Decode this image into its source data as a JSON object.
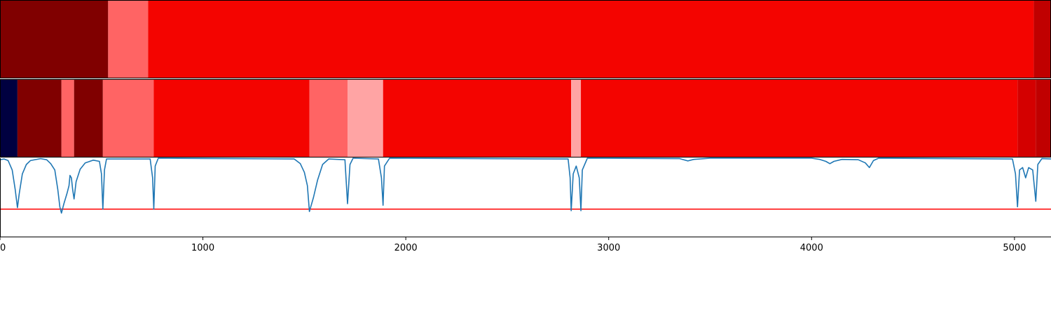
{
  "chart_data": {
    "type": "heatmap",
    "title": "",
    "xlabel": "",
    "ylabel": "",
    "xlim": [
      0,
      5180
    ],
    "x_ticks": [
      "0",
      "1000",
      "2000",
      "3000",
      "4000",
      "5000"
    ],
    "x_tick_values": [
      0,
      1000,
      2000,
      3000,
      4000,
      5000
    ],
    "grid": false,
    "legend": "none",
    "colors": {
      "dark_red": "#800000",
      "red": "#f40400",
      "light_red": "#ff6464",
      "pale_red": "#ffa4a4",
      "mid_red": "#d40000",
      "deep_red": "#c00000",
      "navy": "#000040",
      "line": "#1f77b4",
      "threshold": "#ff0000"
    },
    "bands": [
      {
        "name": "row-1",
        "segments": [
          {
            "start": 0,
            "end": 533,
            "color": "#800000"
          },
          {
            "start": 533,
            "end": 730,
            "color": "#ff6464"
          },
          {
            "start": 730,
            "end": 5095,
            "color": "#f40400"
          },
          {
            "start": 5095,
            "end": 5180,
            "color": "#c00000"
          }
        ]
      },
      {
        "name": "row-2",
        "segments": [
          {
            "start": 0,
            "end": 86,
            "color": "#000040"
          },
          {
            "start": 86,
            "end": 303,
            "color": "#800000"
          },
          {
            "start": 303,
            "end": 365,
            "color": "#ff6464"
          },
          {
            "start": 365,
            "end": 507,
            "color": "#800000"
          },
          {
            "start": 507,
            "end": 758,
            "color": "#ff6464"
          },
          {
            "start": 758,
            "end": 1525,
            "color": "#f40400"
          },
          {
            "start": 1525,
            "end": 1713,
            "color": "#ff6464"
          },
          {
            "start": 1713,
            "end": 1888,
            "color": "#ffa4a4"
          },
          {
            "start": 1888,
            "end": 2815,
            "color": "#f40400"
          },
          {
            "start": 2815,
            "end": 2863,
            "color": "#ffa4a4"
          },
          {
            "start": 2863,
            "end": 5015,
            "color": "#f40400"
          },
          {
            "start": 5015,
            "end": 5105,
            "color": "#d40000"
          },
          {
            "start": 5105,
            "end": 5180,
            "color": "#c00000"
          }
        ]
      }
    ],
    "series": [
      {
        "values": [
          [
            0,
            0.98
          ],
          [
            20,
            0.99
          ],
          [
            40,
            0.97
          ],
          [
            60,
            0.85
          ],
          [
            75,
            0.6
          ],
          [
            86,
            0.37
          ],
          [
            95,
            0.55
          ],
          [
            110,
            0.8
          ],
          [
            130,
            0.92
          ],
          [
            150,
            0.97
          ],
          [
            200,
            0.995
          ],
          [
            230,
            0.98
          ],
          [
            250,
            0.93
          ],
          [
            270,
            0.85
          ],
          [
            285,
            0.6
          ],
          [
            295,
            0.38
          ],
          [
            303,
            0.3
          ],
          [
            315,
            0.42
          ],
          [
            330,
            0.55
          ],
          [
            340,
            0.65
          ],
          [
            345,
            0.78
          ],
          [
            352,
            0.75
          ],
          [
            358,
            0.6
          ],
          [
            365,
            0.48
          ],
          [
            375,
            0.7
          ],
          [
            395,
            0.86
          ],
          [
            420,
            0.94
          ],
          [
            460,
            0.975
          ],
          [
            490,
            0.96
          ],
          [
            500,
            0.8
          ],
          [
            507,
            0.35
          ],
          [
            515,
            0.85
          ],
          [
            525,
            0.99
          ],
          [
            740,
            0.99
          ],
          [
            752,
            0.75
          ],
          [
            758,
            0.35
          ],
          [
            765,
            0.9
          ],
          [
            780,
            1.0
          ],
          [
            1450,
            0.99
          ],
          [
            1480,
            0.93
          ],
          [
            1500,
            0.82
          ],
          [
            1515,
            0.65
          ],
          [
            1525,
            0.32
          ],
          [
            1545,
            0.5
          ],
          [
            1565,
            0.72
          ],
          [
            1590,
            0.92
          ],
          [
            1620,
            0.99
          ],
          [
            1700,
            0.98
          ],
          [
            1713,
            0.42
          ],
          [
            1725,
            0.92
          ],
          [
            1740,
            1.0
          ],
          [
            1865,
            0.99
          ],
          [
            1880,
            0.75
          ],
          [
            1888,
            0.4
          ],
          [
            1895,
            0.9
          ],
          [
            1920,
            1.0
          ],
          [
            2800,
            0.99
          ],
          [
            2810,
            0.75
          ],
          [
            2815,
            0.33
          ],
          [
            2825,
            0.8
          ],
          [
            2840,
            0.9
          ],
          [
            2855,
            0.75
          ],
          [
            2863,
            0.33
          ],
          [
            2870,
            0.85
          ],
          [
            2895,
            1.0
          ],
          [
            3350,
            0.995
          ],
          [
            3390,
            0.965
          ],
          [
            3420,
            0.985
          ],
          [
            3500,
            1.0
          ],
          [
            4000,
            1.0
          ],
          [
            4040,
            0.985
          ],
          [
            4070,
            0.96
          ],
          [
            4090,
            0.93
          ],
          [
            4110,
            0.96
          ],
          [
            4150,
            0.985
          ],
          [
            4230,
            0.98
          ],
          [
            4265,
            0.94
          ],
          [
            4285,
            0.88
          ],
          [
            4305,
            0.97
          ],
          [
            4330,
            1.0
          ],
          [
            4990,
            0.99
          ],
          [
            5005,
            0.8
          ],
          [
            5015,
            0.38
          ],
          [
            5025,
            0.85
          ],
          [
            5040,
            0.88
          ],
          [
            5055,
            0.75
          ],
          [
            5070,
            0.88
          ],
          [
            5090,
            0.85
          ],
          [
            5105,
            0.45
          ],
          [
            5115,
            0.92
          ],
          [
            5135,
            0.995
          ],
          [
            5180,
            0.99
          ]
        ],
        "threshold": 0.35
      }
    ]
  }
}
